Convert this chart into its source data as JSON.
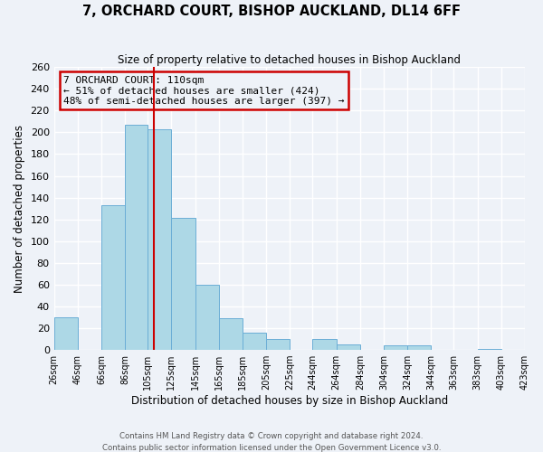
{
  "title": "7, ORCHARD COURT, BISHOP AUCKLAND, DL14 6FF",
  "subtitle": "Size of property relative to detached houses in Bishop Auckland",
  "xlabel": "Distribution of detached houses by size in Bishop Auckland",
  "ylabel": "Number of detached properties",
  "bar_left_edges": [
    26,
    46,
    66,
    86,
    105,
    125,
    145,
    165,
    185,
    205,
    225,
    244,
    264,
    284,
    304,
    324,
    344,
    363,
    383,
    403
  ],
  "bar_widths": [
    20,
    20,
    20,
    19,
    20,
    20,
    20,
    20,
    20,
    20,
    19,
    20,
    20,
    20,
    20,
    20,
    19,
    20,
    20,
    20
  ],
  "bar_heights": [
    30,
    0,
    133,
    207,
    203,
    121,
    60,
    29,
    16,
    10,
    0,
    10,
    5,
    0,
    4,
    4,
    0,
    0,
    1,
    0
  ],
  "bar_color": "#add8e6",
  "bar_edgecolor": "#6baed6",
  "vline_x": 110,
  "vline_color": "#cc0000",
  "annotation_title": "7 ORCHARD COURT: 110sqm",
  "annotation_line1": "← 51% of detached houses are smaller (424)",
  "annotation_line2": "48% of semi-detached houses are larger (397) →",
  "annotation_box_edgecolor": "#cc0000",
  "xlim": [
    26,
    423
  ],
  "ylim": [
    0,
    260
  ],
  "yticks": [
    0,
    20,
    40,
    60,
    80,
    100,
    120,
    140,
    160,
    180,
    200,
    220,
    240,
    260
  ],
  "xtick_positions": [
    26,
    46,
    66,
    86,
    105,
    125,
    145,
    165,
    185,
    205,
    225,
    244,
    264,
    284,
    304,
    324,
    344,
    363,
    383,
    403,
    423
  ],
  "xtick_labels": [
    "26sqm",
    "46sqm",
    "66sqm",
    "86sqm",
    "105sqm",
    "125sqm",
    "145sqm",
    "165sqm",
    "185sqm",
    "205sqm",
    "225sqm",
    "244sqm",
    "264sqm",
    "284sqm",
    "304sqm",
    "324sqm",
    "344sqm",
    "363sqm",
    "383sqm",
    "403sqm",
    "423sqm"
  ],
  "footer1": "Contains HM Land Registry data © Crown copyright and database right 2024.",
  "footer2": "Contains public sector information licensed under the Open Government Licence v3.0.",
  "background_color": "#eef2f8",
  "grid_color": "#ffffff"
}
